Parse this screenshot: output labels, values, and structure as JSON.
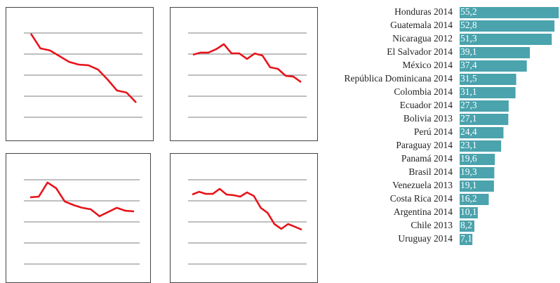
{
  "chart_data": [
    {
      "type": "line",
      "categories": [
        null,
        null,
        null,
        null,
        null,
        null,
        null,
        null,
        null,
        null,
        null,
        null
      ],
      "values": [
        3.97,
        3.27,
        3.17,
        2.9,
        2.63,
        2.5,
        2.47,
        2.27,
        1.8,
        1.27,
        1.17,
        0.7
      ],
      "color": "#e8141b",
      "ylim": [
        0,
        4
      ],
      "yticks": [
        0,
        1,
        2,
        3,
        4
      ],
      "grid": true
    },
    {
      "type": "line",
      "categories": [
        null,
        null,
        null,
        null,
        null,
        null,
        null,
        null,
        null,
        null,
        null,
        null,
        null,
        null,
        null
      ],
      "values": [
        2.97,
        3.07,
        3.07,
        3.23,
        3.47,
        3.03,
        3.03,
        2.77,
        3.03,
        2.93,
        2.37,
        2.3,
        1.97,
        1.93,
        1.67
      ],
      "color": "#e8141b",
      "ylim": [
        0,
        4
      ],
      "yticks": [
        0,
        1,
        2,
        3,
        4
      ],
      "grid": true
    },
    {
      "type": "line",
      "categories": [
        null,
        null,
        null,
        null,
        null,
        null,
        null,
        null,
        null,
        null,
        null,
        null,
        null
      ],
      "values": [
        3.17,
        3.2,
        3.87,
        3.6,
        2.97,
        2.8,
        2.67,
        2.6,
        2.27,
        2.47,
        2.67,
        2.53,
        2.5
      ],
      "color": "#e8141b",
      "ylim": [
        0,
        4
      ],
      "yticks": [
        0,
        1,
        2,
        3,
        4
      ],
      "grid": true
    },
    {
      "type": "line",
      "categories": [
        null,
        null,
        null,
        null,
        null,
        null,
        null,
        null,
        null,
        null,
        null,
        null,
        null,
        null,
        null,
        null,
        null
      ],
      "values": [
        3.3,
        3.43,
        3.33,
        3.33,
        3.57,
        3.3,
        3.27,
        3.2,
        3.4,
        3.23,
        2.67,
        2.43,
        1.9,
        1.67,
        1.9,
        1.77,
        1.63
      ],
      "color": "#e8141b",
      "ylim": [
        0,
        4
      ],
      "yticks": [
        0,
        1,
        2,
        3,
        4
      ],
      "grid": true
    },
    {
      "type": "bar",
      "orientation": "horizontal",
      "color": "#4aa3ad",
      "xlim": [
        0,
        55.5
      ],
      "categories": [
        "Honduras 2014",
        "Guatemala 2014",
        "Nicaragua 2012",
        "El Salvador 2014",
        "México 2014",
        "República Dominicana 2014",
        "Colombia 2014",
        "Ecuador 2014",
        "Bolivia 2013",
        "Perú 2014",
        "Paraguay 2014",
        "Panamá 2014",
        "Brasil 2014",
        "Venezuela 2013",
        "Costa Rica 2014",
        "Argentina 2014",
        "Chile 2013",
        "Uruguay 2014"
      ],
      "values": [
        55.2,
        52.8,
        51.3,
        39.1,
        37.4,
        31.5,
        31.1,
        27.3,
        27.1,
        24.4,
        23.1,
        19.6,
        19.3,
        19.1,
        16.2,
        10.1,
        8.2,
        7.1
      ],
      "value_labels": [
        "55,2",
        "52,8",
        "51,3",
        "39,1",
        "37,4",
        "31,5",
        "31,1",
        "27,3",
        "27,1",
        "24,4",
        "23,1",
        "19,6",
        "19,3",
        "19,1",
        "16,2",
        "10,1",
        "8,2",
        "7,1"
      ]
    }
  ]
}
